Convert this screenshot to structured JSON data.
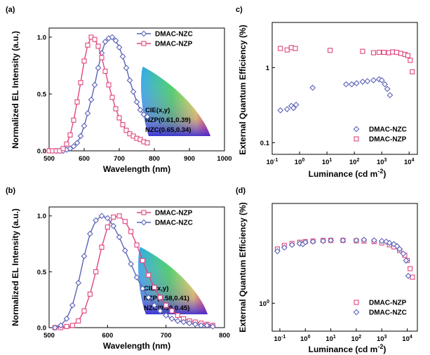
{
  "colors": {
    "dmac_nzc": "#5b63b8",
    "dmac_nzp": "#e0457e"
  },
  "chart_data": [
    {
      "panel": "(a)",
      "type": "line",
      "xlabel": "Wavelength (nm)",
      "ylabel": "Normalized EL Intensity (a.u.)",
      "xlim": [
        500,
        1000
      ],
      "ylim": [
        0,
        1.08
      ],
      "xticks": [
        "500",
        "600",
        "700",
        "800",
        "900",
        "1000"
      ],
      "yticks": [
        "0.0",
        "0.5",
        "1.0"
      ],
      "legend": "top-right",
      "series": [
        {
          "name": "DMAC-NZC",
          "color": "#5b63b8",
          "marker": "diamond",
          "x": [
            520,
            530,
            540,
            550,
            560,
            570,
            580,
            590,
            600,
            610,
            620,
            630,
            640,
            650,
            660,
            670,
            680,
            690,
            700,
            710,
            720,
            730,
            740,
            750,
            760,
            770,
            780
          ],
          "y": [
            0,
            0,
            0,
            0.01,
            0.02,
            0.04,
            0.07,
            0.13,
            0.22,
            0.33,
            0.45,
            0.58,
            0.73,
            0.86,
            0.96,
            0.99,
            1.0,
            0.97,
            0.91,
            0.83,
            0.73,
            0.62,
            0.52,
            0.43,
            0.36,
            0.32,
            0.3
          ]
        },
        {
          "name": "DMAC-NZP",
          "color": "#e0457e",
          "marker": "square",
          "x": [
            500,
            510,
            520,
            530,
            540,
            550,
            560,
            570,
            580,
            590,
            600,
            610,
            620,
            630,
            640,
            650,
            660,
            670,
            680,
            690,
            700,
            710,
            720,
            730,
            740,
            750,
            760,
            770,
            780
          ],
          "y": [
            0,
            0,
            0,
            0,
            0.02,
            0.06,
            0.14,
            0.27,
            0.43,
            0.6,
            0.79,
            0.93,
            1.0,
            0.98,
            0.92,
            0.82,
            0.7,
            0.58,
            0.47,
            0.37,
            0.29,
            0.23,
            0.18,
            0.15,
            0.13,
            0.11,
            0.1,
            0.08,
            0.07
          ]
        }
      ],
      "inset": {
        "title": "CIE(x,y)",
        "lines": [
          "NZP(0.61,0.39)",
          "NZC(0.65,0.34)"
        ]
      }
    },
    {
      "panel": "c)",
      "type": "scatter",
      "xlabel": "Luminance (cd m-2)",
      "ylabel": "External Quantum Efficiency (%)",
      "xscale": "log",
      "yscale": "log",
      "xlim": [
        0.1,
        20000
      ],
      "ylim": [
        0.07,
        4
      ],
      "xticks": [
        0.1,
        1,
        10,
        100,
        1000,
        10000
      ],
      "yticks": [
        0.1,
        1
      ],
      "legend": "bottom-right",
      "series": [
        {
          "name": "DMAC-NZC",
          "color": "#5b63b8",
          "marker": "diamond",
          "x": [
            0.2,
            0.35,
            0.5,
            0.6,
            0.75,
            3,
            50,
            80,
            120,
            200,
            300,
            500,
            800,
            1000,
            1300,
            1600,
            2000
          ],
          "y": [
            0.27,
            0.28,
            0.31,
            0.29,
            0.32,
            0.54,
            0.6,
            0.6,
            0.62,
            0.65,
            0.66,
            0.68,
            0.7,
            0.68,
            0.6,
            0.52,
            0.43
          ]
        },
        {
          "name": "DMAC-NZP",
          "color": "#e0457e",
          "marker": "square",
          "x": [
            0.2,
            0.35,
            0.5,
            0.7,
            13,
            200,
            500,
            800,
            1200,
            1800,
            2500,
            3500,
            5000,
            7000,
            9000,
            11000,
            13000
          ],
          "y": [
            1.8,
            1.72,
            1.85,
            1.8,
            1.7,
            1.65,
            1.58,
            1.6,
            1.6,
            1.58,
            1.62,
            1.6,
            1.55,
            1.5,
            1.45,
            1.25,
            0.88
          ]
        }
      ]
    },
    {
      "panel": "(b)",
      "type": "line",
      "xlabel": "Wavelength (nm)",
      "ylabel": "Normalized EL Intensity (a.u.)",
      "xlim": [
        500,
        800
      ],
      "ylim": [
        0,
        1.08
      ],
      "xticks": [
        "500",
        "600",
        "700",
        "800"
      ],
      "yticks": [
        "0.0",
        "0.5",
        "1.0"
      ],
      "legend": "top-right",
      "series": [
        {
          "name": "DMAC-NZP",
          "color": "#e0457e",
          "marker": "square",
          "x": [
            510,
            520,
            530,
            540,
            550,
            560,
            570,
            580,
            590,
            600,
            610,
            620,
            630,
            640,
            650,
            660,
            670,
            680,
            690,
            700,
            710,
            720,
            730,
            740,
            750,
            760,
            770,
            780
          ],
          "y": [
            0,
            0,
            0.01,
            0.02,
            0.06,
            0.15,
            0.3,
            0.5,
            0.72,
            0.9,
            0.99,
            1.0,
            0.95,
            0.86,
            0.74,
            0.6,
            0.47,
            0.36,
            0.27,
            0.2,
            0.15,
            0.11,
            0.08,
            0.06,
            0.05,
            0.04,
            0.03,
            0.02
          ]
        },
        {
          "name": "DMAC-NZC",
          "color": "#5b63b8",
          "marker": "diamond",
          "x": [
            510,
            520,
            530,
            540,
            550,
            560,
            570,
            580,
            590,
            600,
            610,
            620,
            630,
            640,
            650,
            660,
            670,
            680,
            690,
            700,
            710,
            720,
            730,
            740,
            750,
            760,
            770,
            780
          ],
          "y": [
            0,
            0.02,
            0.08,
            0.2,
            0.4,
            0.64,
            0.84,
            0.96,
            1.0,
            0.98,
            0.91,
            0.81,
            0.69,
            0.57,
            0.45,
            0.35,
            0.27,
            0.2,
            0.15,
            0.11,
            0.08,
            0.06,
            0.05,
            0.04,
            0.03,
            0.02,
            0.02,
            0.01
          ]
        }
      ],
      "inset": {
        "title": "CIE(x,y)",
        "lines": [
          "NZP(0.58,0.41)",
          "NZC(0.50,0.45)"
        ]
      }
    },
    {
      "panel": "(d)",
      "type": "scatter",
      "xlabel": "Luminance (cd m-2)",
      "ylabel": "External Quantum Efficiency (%)",
      "xscale": "log",
      "yscale": "log",
      "xlim": [
        0.05,
        25000
      ],
      "ylim": [
        0.55,
        8.5
      ],
      "xticks": [
        0.1,
        1,
        10,
        100,
        1000,
        10000
      ],
      "yticks": [
        1
      ],
      "legend": "bottom-right",
      "series": [
        {
          "name": "DMAC-NZP",
          "color": "#e0457e",
          "marker": "square",
          "x": [
            0.08,
            0.15,
            0.3,
            0.6,
            1,
            2,
            5,
            10,
            30,
            100,
            200,
            500,
            1000,
            2000,
            3000,
            5000,
            8000,
            10000,
            13000,
            16000
          ],
          "y": [
            3.2,
            3.45,
            3.6,
            3.7,
            3.75,
            3.8,
            3.85,
            3.85,
            3.85,
            3.82,
            3.8,
            3.75,
            3.65,
            3.5,
            3.35,
            3.1,
            2.8,
            2.5,
            2.1,
            1.75
          ]
        },
        {
          "name": "DMAC-NZC",
          "color": "#5b63b8",
          "marker": "diamond",
          "x": [
            0.08,
            0.15,
            0.3,
            0.6,
            0.8,
            1,
            2,
            5,
            10,
            30,
            100,
            200,
            500,
            1000,
            1500,
            2000,
            3000,
            4000,
            5000,
            7000,
            9000,
            11000
          ],
          "y": [
            3.05,
            3.3,
            3.5,
            3.6,
            3.55,
            3.7,
            3.75,
            3.8,
            3.85,
            3.85,
            3.85,
            3.9,
            3.85,
            3.8,
            3.75,
            3.65,
            3.55,
            3.4,
            3.2,
            2.9,
            2.5,
            1.8
          ]
        }
      ]
    }
  ]
}
